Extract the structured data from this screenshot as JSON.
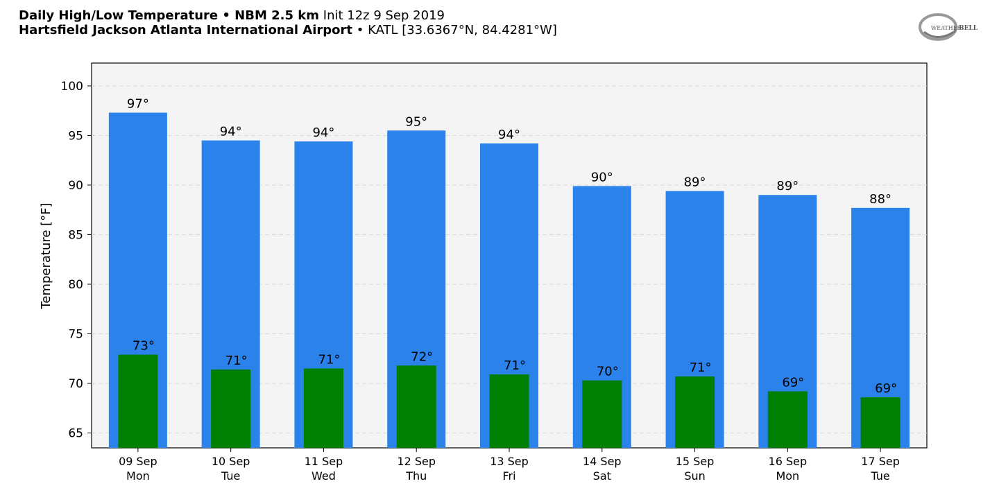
{
  "header": {
    "line1_bold": "Daily High/Low Temperature • NBM 2.5 km",
    "line1_light": "Init 12z 9 Sep 2019",
    "line2_bold": "Hartsfield Jackson Atlanta International Airport",
    "line2_light": "• KATL [33.6367°N, 84.4281°W]"
  },
  "logo": {
    "text": "WEATHERBELL"
  },
  "colors": {
    "high": "#2a82ea",
    "low": "#008000",
    "plot_bg": "#f4f4f4",
    "grid": "#d8d8d8"
  },
  "chart_data": {
    "type": "bar",
    "title": "Daily High/Low Temperature",
    "ylabel": "Temperature [°F]",
    "ylim": [
      63.5,
      102.3
    ],
    "yticks": [
      65,
      70,
      75,
      80,
      85,
      90,
      95,
      100
    ],
    "grid": "horizontal dashed",
    "categories": [
      "09 Sep",
      "10 Sep",
      "11 Sep",
      "12 Sep",
      "13 Sep",
      "14 Sep",
      "15 Sep",
      "16 Sep",
      "17 Sep"
    ],
    "weekdays": [
      "Mon",
      "Tue",
      "Wed",
      "Thu",
      "Fri",
      "Sat",
      "Sun",
      "Mon",
      "Tue"
    ],
    "series": [
      {
        "key": "high",
        "values": [
          97.3,
          94.5,
          94.4,
          95.5,
          94.2,
          89.9,
          89.4,
          89.0,
          87.7
        ],
        "labels": [
          "97°",
          "94°",
          "94°",
          "95°",
          "94°",
          "90°",
          "89°",
          "89°",
          "88°"
        ]
      },
      {
        "key": "low",
        "values": [
          72.9,
          71.4,
          71.5,
          71.8,
          70.9,
          70.3,
          70.7,
          69.2,
          68.6
        ],
        "labels": [
          "73°",
          "71°",
          "71°",
          "72°",
          "71°",
          "70°",
          "71°",
          "69°",
          "69°"
        ]
      }
    ]
  }
}
